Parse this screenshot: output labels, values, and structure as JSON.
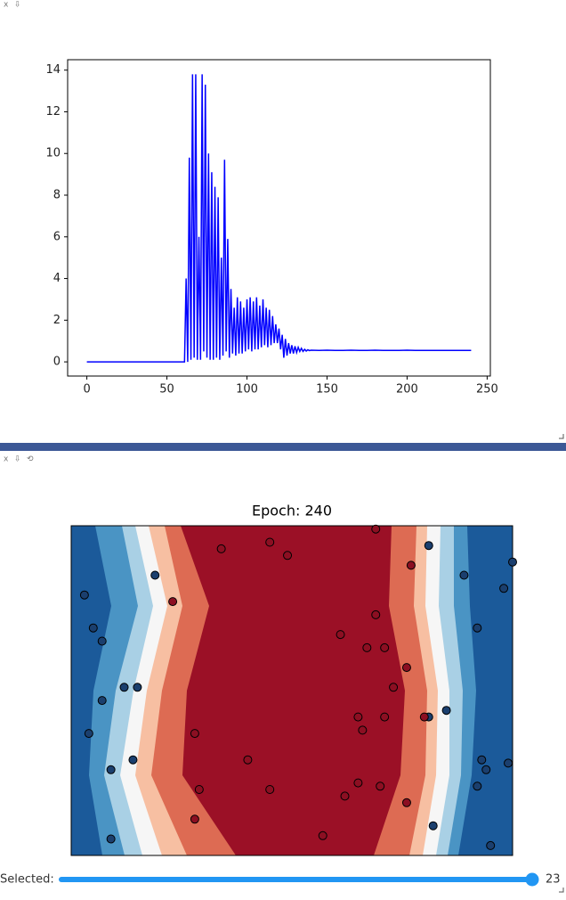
{
  "output_controls_1": [
    "x",
    "⇩"
  ],
  "output_controls_2": [
    "x",
    "⇩",
    "⟲"
  ],
  "chart_data": [
    {
      "type": "line",
      "color": "#0000ff",
      "xlim": [
        -12,
        252
      ],
      "ylim": [
        -0.68,
        14.5
      ],
      "xticks": [
        0,
        50,
        100,
        150,
        200,
        250
      ],
      "yticks": [
        0,
        2,
        4,
        6,
        8,
        10,
        12,
        14
      ],
      "x": [
        0,
        10,
        20,
        30,
        40,
        50,
        60,
        61,
        62,
        63,
        64,
        65,
        66,
        67,
        68,
        69,
        70,
        71,
        72,
        73,
        74,
        75,
        76,
        77,
        78,
        79,
        80,
        81,
        82,
        83,
        84,
        85,
        86,
        87,
        88,
        89,
        90,
        91,
        92,
        93,
        94,
        95,
        96,
        97,
        98,
        99,
        100,
        101,
        102,
        103,
        104,
        105,
        106,
        107,
        108,
        109,
        110,
        111,
        112,
        113,
        114,
        115,
        116,
        117,
        118,
        119,
        120,
        121,
        122,
        123,
        124,
        125,
        126,
        127,
        128,
        129,
        130,
        131,
        132,
        133,
        134,
        135,
        136,
        137,
        138,
        139,
        140,
        145,
        150,
        155,
        160,
        165,
        170,
        175,
        180,
        185,
        190,
        195,
        200,
        205,
        210,
        215,
        220,
        225,
        230,
        235,
        240
      ],
      "values": [
        0,
        0,
        0,
        0,
        0,
        0,
        0,
        0,
        4,
        0,
        9.8,
        0.1,
        13.8,
        0.2,
        13.8,
        0.1,
        6,
        0.1,
        13.8,
        0.5,
        13.3,
        0.2,
        10,
        0.1,
        9.1,
        0.1,
        8.4,
        0.2,
        7.9,
        0.1,
        5,
        0.3,
        9.7,
        0.5,
        5.9,
        0.2,
        3.5,
        0.4,
        2.6,
        0.3,
        3.1,
        0.4,
        2.9,
        0.4,
        2.6,
        0.5,
        3,
        0.6,
        3.1,
        0.5,
        2.9,
        0.6,
        3.1,
        0.6,
        2.7,
        0.7,
        3,
        0.8,
        2.6,
        0.7,
        2.5,
        0.8,
        2.2,
        0.9,
        1.8,
        0.9,
        1.6,
        0.6,
        1.3,
        0.2,
        1.1,
        0.3,
        0.9,
        0.4,
        0.8,
        0.4,
        0.75,
        0.45,
        0.7,
        0.5,
        0.65,
        0.5,
        0.6,
        0.52,
        0.58,
        0.54,
        0.56,
        0.55,
        0.56,
        0.55,
        0.55,
        0.56,
        0.55,
        0.55,
        0.56,
        0.55,
        0.55,
        0.55,
        0.56,
        0.55,
        0.55,
        0.55,
        0.55,
        0.55,
        0.55,
        0.55,
        0.55
      ]
    },
    {
      "type": "scatter",
      "title": "Epoch: 240",
      "xlim": [
        0,
        1
      ],
      "ylim": [
        0,
        1
      ],
      "series": [
        {
          "color": "#1b3f6e",
          "x": [
            0.03,
            0.05,
            0.07,
            0.07,
            0.04,
            0.09,
            0.14,
            0.09,
            0.12,
            0.15,
            0.19,
            0.81,
            0.89,
            0.98,
            0.92,
            0.85,
            0.81,
            0.93,
            0.94,
            0.99,
            0.92,
            0.82,
            0.95,
            1.0
          ],
          "y": [
            0.79,
            0.69,
            0.65,
            0.47,
            0.37,
            0.26,
            0.29,
            0.05,
            0.51,
            0.51,
            0.85,
            0.94,
            0.85,
            0.81,
            0.69,
            0.44,
            0.42,
            0.29,
            0.26,
            0.28,
            0.21,
            0.09,
            0.03,
            0.89
          ]
        },
        {
          "color": "#8c0f22",
          "x": [
            0.34,
            0.45,
            0.49,
            0.69,
            0.77,
            0.69,
            0.61,
            0.67,
            0.71,
            0.76,
            0.73,
            0.65,
            0.66,
            0.71,
            0.8,
            0.28,
            0.4,
            0.45,
            0.29,
            0.28,
            0.65,
            0.62,
            0.7,
            0.76,
            0.57,
            0.23
          ],
          "y": [
            0.93,
            0.95,
            0.91,
            0.99,
            0.88,
            0.73,
            0.67,
            0.63,
            0.63,
            0.57,
            0.51,
            0.42,
            0.38,
            0.42,
            0.42,
            0.37,
            0.29,
            0.2,
            0.2,
            0.11,
            0.22,
            0.18,
            0.21,
            0.16,
            0.06,
            0.77
          ]
        }
      ]
    }
  ],
  "slider": {
    "label": "Selected:",
    "value": 23
  }
}
